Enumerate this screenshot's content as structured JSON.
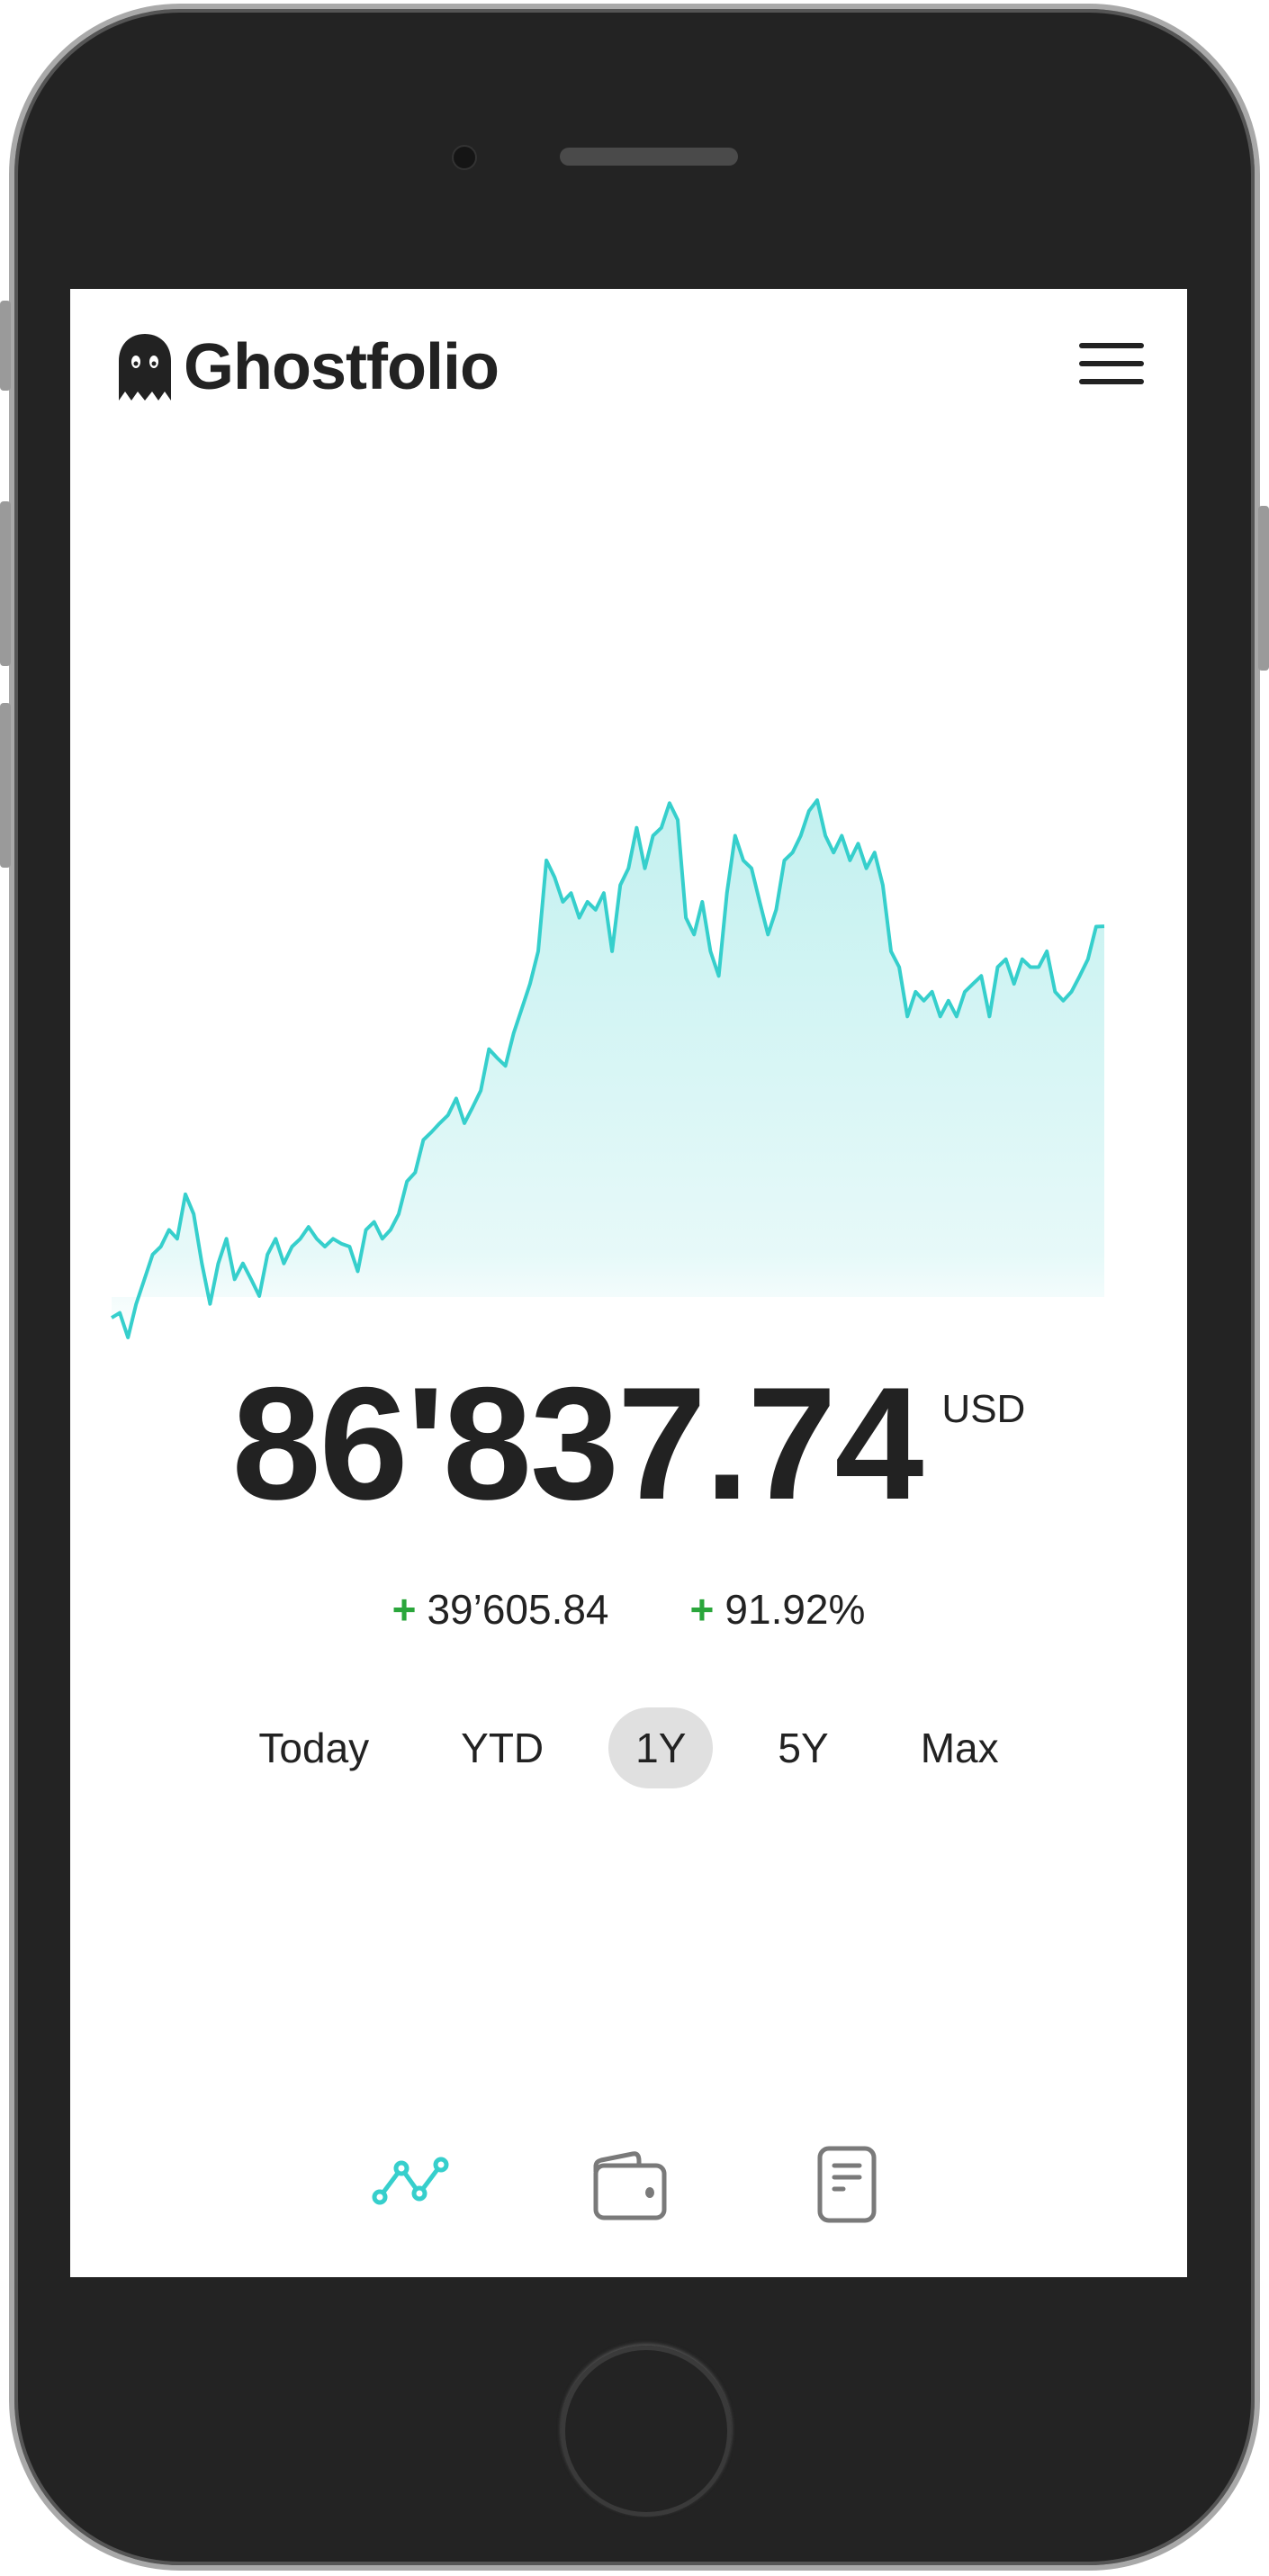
{
  "app": {
    "title": "Ghostfolio",
    "logo_icon": "ghost-icon",
    "menu_icon": "hamburger-menu-icon"
  },
  "portfolio": {
    "value": "86'837.74",
    "currency": "USD",
    "change_absolute": "39’605.84",
    "change_percent": "91.92%",
    "change_sign": "+",
    "positive_color": "#2aa63b"
  },
  "ranges": [
    {
      "label": "Today",
      "active": false
    },
    {
      "label": "YTD",
      "active": false
    },
    {
      "label": "1Y",
      "active": true
    },
    {
      "label": "5Y",
      "active": false
    },
    {
      "label": "Max",
      "active": false
    }
  ],
  "tabs": [
    {
      "icon": "line-chart-icon",
      "active": true
    },
    {
      "icon": "wallet-icon",
      "active": false
    },
    {
      "icon": "document-icon",
      "active": false
    }
  ],
  "colors": {
    "accent": "#36cfcc",
    "text": "#222222",
    "inactive_icon": "#7a7a7a"
  },
  "chart_data": {
    "type": "area",
    "series": [
      {
        "values": [
          47200,
          47700,
          45200,
          48600,
          51100,
          53600,
          54400,
          56100,
          55200,
          59700,
          57700,
          52700,
          48600,
          52700,
          55200,
          51100,
          52700,
          51100,
          49400,
          53600,
          55200,
          52700,
          54400,
          55200,
          56400,
          55200,
          54400,
          55200,
          54700,
          54400,
          51900,
          56100,
          56900,
          55200,
          56100,
          57700,
          61000,
          61900,
          65200,
          66000,
          66900,
          67700,
          69400,
          66900,
          68500,
          70200,
          74400,
          73500,
          72700,
          76000,
          78500,
          81000,
          84300,
          93500,
          91800,
          89300,
          90200,
          87700,
          89300,
          88500,
          90200,
          84300,
          91000,
          92700,
          96800,
          92700,
          96000,
          96800,
          99300,
          97600,
          87700,
          86000,
          89300,
          84300,
          81800,
          90200,
          96000,
          93500,
          92700,
          89300,
          86000,
          88500,
          93500,
          94300,
          96000,
          98500,
          99600,
          96000,
          94300,
          96000,
          93500,
          95200,
          92700,
          94300,
          91000,
          84300,
          82700,
          77700,
          80200,
          79300,
          80200,
          77700,
          79300,
          77700,
          80200,
          81000,
          81800,
          77700,
          82700,
          83500,
          81000,
          83500,
          82700,
          82700,
          84300,
          80200,
          79300,
          80200,
          81800,
          83500,
          86800,
          86837.74
        ]
      }
    ],
    "axes_visible": false,
    "grid": false,
    "fill": "gradient"
  }
}
